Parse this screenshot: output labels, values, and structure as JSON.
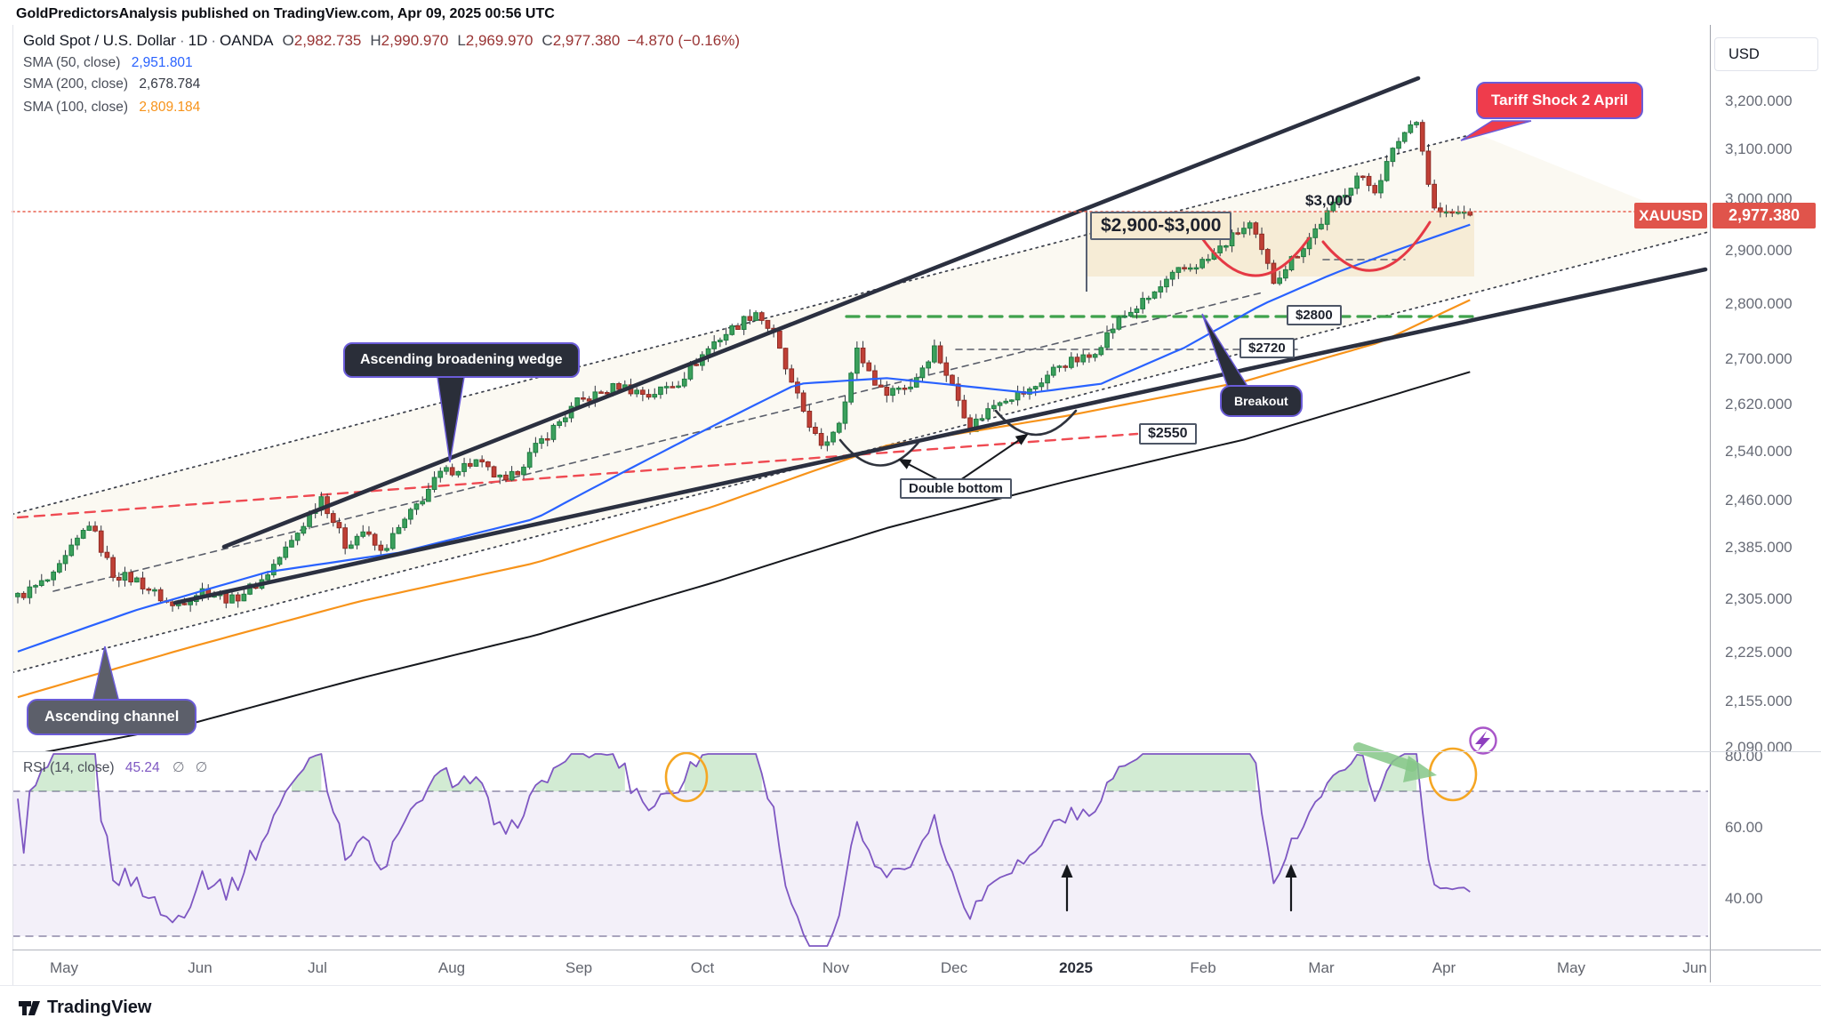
{
  "header": {
    "published_line": "GoldPredictorsAnalysis published on TradingView.com, Apr 09, 2025 00:56 UTC"
  },
  "legend": {
    "title": "Gold Spot / U.S. Dollar",
    "sep": "·",
    "interval": "1D",
    "exchange": "OANDA",
    "o_label": "O",
    "o": "2,982.735",
    "h_label": "H",
    "h": "2,990.970",
    "l_label": "L",
    "l": "2,969.970",
    "c_label": "C",
    "c": "2,977.380",
    "change": "−4.870 (−0.16%)",
    "sma50_label": "SMA (50, close)",
    "sma50_value": "2,951.801",
    "sma200_label": "SMA (200, close)",
    "sma200_value": "2,678.784",
    "sma100_label": "SMA (100, close)",
    "sma100_value": "2,809.184"
  },
  "rsi_legend": {
    "label": "RSI (14, close)",
    "value": "45.24",
    "empty1": "∅",
    "empty2": "∅"
  },
  "price_axis": {
    "currency": "USD",
    "ticks": [
      "3,200.000",
      "3,100.000",
      "3,000.000",
      "2,900.000",
      "2,800.000",
      "2,700.000",
      "2,620.000",
      "2,540.000",
      "2,460.000",
      "2,385.000",
      "2,305.000",
      "2,225.000",
      "2,155.000",
      "2,090.000"
    ],
    "symbol_badge": "XAUUSD",
    "last_label": "2,977.380",
    "badge_color": "#e0544b"
  },
  "rsi_axis": {
    "ticks": [
      "80.00",
      "60.00",
      "40.00"
    ]
  },
  "time_axis": {
    "labels": [
      "May",
      "Jun",
      "Jul",
      "Aug",
      "Sep",
      "Oct",
      "Nov",
      "Dec",
      "2025",
      "Feb",
      "Mar",
      "Apr",
      "May",
      "Jun"
    ],
    "bold_index": 8
  },
  "annotations": {
    "tariff_shock": "Tariff Shock 2 April",
    "zone": "$2,900-$3,000",
    "level_3000": "$3,000",
    "level_2800": "$2800",
    "level_2720": "$2720",
    "level_2550": "$2550",
    "double_bottom": "Double bottom",
    "breakout": "Breakout",
    "wedge": "Ascending broadening wedge",
    "channel": "Ascending channel"
  },
  "footer": {
    "brand": "TradingView"
  },
  "chart_data": {
    "type": "candlestick",
    "symbol": "XAUUSD",
    "title": "Gold Spot / U.S. Dollar",
    "interval": "1D",
    "exchange": "OANDA",
    "price_scale": {
      "type": "log",
      "ticks": [
        3200,
        3100,
        3000,
        2900,
        2800,
        2700,
        2620,
        2540,
        2460,
        2385,
        2305,
        2225,
        2155,
        2090
      ]
    },
    "last_bar": {
      "open": 2982.735,
      "high": 2990.97,
      "low": 2969.97,
      "close": 2977.38,
      "change": -4.87,
      "change_pct": -0.16
    },
    "bars": 245,
    "price_path_anchors": [
      [
        0,
        2310
      ],
      [
        6,
        2340
      ],
      [
        12,
        2425
      ],
      [
        16,
        2345
      ],
      [
        20,
        2335
      ],
      [
        26,
        2295
      ],
      [
        31,
        2320
      ],
      [
        36,
        2305
      ],
      [
        41,
        2335
      ],
      [
        46,
        2395
      ],
      [
        51,
        2468
      ],
      [
        55,
        2390
      ],
      [
        58,
        2412
      ],
      [
        61,
        2378
      ],
      [
        66,
        2440
      ],
      [
        71,
        2505
      ],
      [
        77,
        2525
      ],
      [
        82,
        2488
      ],
      [
        88,
        2560
      ],
      [
        94,
        2625
      ],
      [
        101,
        2655
      ],
      [
        106,
        2638
      ],
      [
        111,
        2662
      ],
      [
        117,
        2732
      ],
      [
        124,
        2788
      ],
      [
        127,
        2745
      ],
      [
        130,
        2655
      ],
      [
        135,
        2545
      ],
      [
        138,
        2595
      ],
      [
        141,
        2716
      ],
      [
        145,
        2645
      ],
      [
        150,
        2655
      ],
      [
        154,
        2722
      ],
      [
        159,
        2608
      ],
      [
        160,
        2583
      ],
      [
        165,
        2632
      ],
      [
        170,
        2645
      ],
      [
        175,
        2692
      ],
      [
        180,
        2705
      ],
      [
        185,
        2772
      ],
      [
        190,
        2812
      ],
      [
        195,
        2862
      ],
      [
        200,
        2885
      ],
      [
        205,
        2938
      ],
      [
        207,
        2951
      ],
      [
        211,
        2845
      ],
      [
        216,
        2912
      ],
      [
        221,
        2988
      ],
      [
        225,
        3048
      ],
      [
        228,
        3022
      ],
      [
        232,
        3122
      ],
      [
        235,
        3168
      ],
      [
        236,
        3100
      ],
      [
        237,
        3035
      ],
      [
        238,
        2982
      ],
      [
        240,
        2972
      ],
      [
        244,
        2977
      ]
    ],
    "overlays": {
      "sma50": {
        "period": 50,
        "value": 2951.801,
        "color": "#2962ff",
        "anchors": [
          [
            0,
            2228
          ],
          [
            20,
            2290
          ],
          [
            42,
            2348
          ],
          [
            64,
            2378
          ],
          [
            87,
            2432
          ],
          [
            109,
            2545
          ],
          [
            131,
            2658
          ],
          [
            146,
            2668
          ],
          [
            158,
            2655
          ],
          [
            170,
            2642
          ],
          [
            182,
            2658
          ],
          [
            196,
            2722
          ],
          [
            209,
            2800
          ],
          [
            221,
            2858
          ],
          [
            233,
            2908
          ],
          [
            244,
            2952
          ]
        ]
      },
      "sma100": {
        "period": 100,
        "value": 2809.184,
        "color": "#f7931a",
        "anchors": [
          [
            0,
            2162
          ],
          [
            28,
            2232
          ],
          [
            57,
            2302
          ],
          [
            87,
            2362
          ],
          [
            117,
            2452
          ],
          [
            146,
            2552
          ],
          [
            176,
            2602
          ],
          [
            206,
            2662
          ],
          [
            229,
            2732
          ],
          [
            244,
            2809
          ]
        ]
      },
      "sma200": {
        "period": 200,
        "value": 2678.784,
        "color": "#16181d",
        "anchors": [
          [
            0,
            2078
          ],
          [
            28,
            2122
          ],
          [
            57,
            2188
          ],
          [
            87,
            2252
          ],
          [
            117,
            2332
          ],
          [
            146,
            2417
          ],
          [
            176,
            2492
          ],
          [
            206,
            2562
          ],
          [
            229,
            2632
          ],
          [
            244,
            2679
          ]
        ]
      }
    },
    "rsi": {
      "period": 14,
      "value": 45.24,
      "color": "#7e57c2",
      "levels": [
        70,
        50,
        30
      ],
      "axis_ticks": [
        80,
        60,
        40
      ]
    },
    "levels": {
      "resistance_zone": [
        2900,
        3000
      ],
      "round_level": 3000,
      "green_support": 2800,
      "gray_support": 2720,
      "red_trendline": 2550
    },
    "candle_colors": {
      "up_fill": "#3ba05c",
      "up_border": "#1e7c41",
      "down_fill": "#c04036",
      "down_border": "#8f2b24",
      "wick": "#30343e"
    }
  }
}
